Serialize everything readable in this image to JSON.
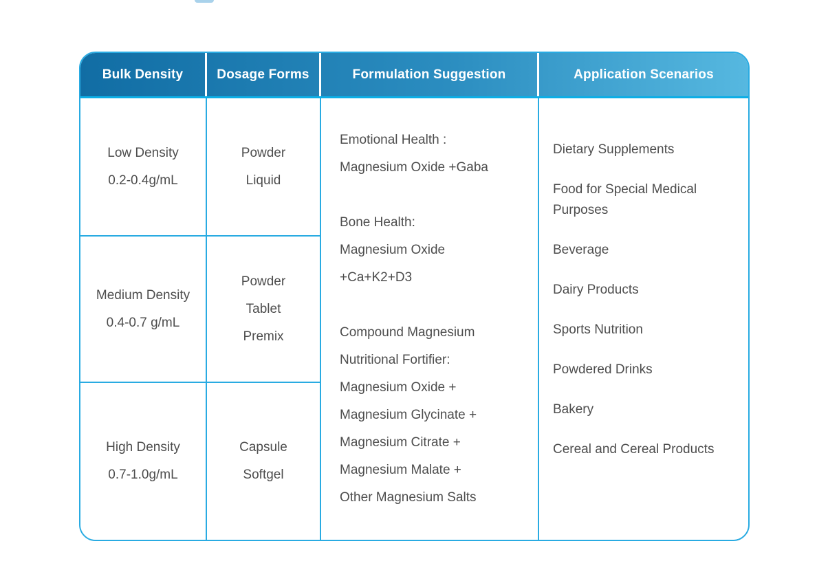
{
  "colors": {
    "header_gradient_left": "#116da4",
    "header_gradient_right": "#56b8e0",
    "header_text": "#ffffff",
    "grid_border": "#29abe2",
    "header_underline": "#0caee6",
    "cell_text": "#4d4d4d",
    "top_sliver": "#a9d2eb"
  },
  "table": {
    "headers": [
      "Bulk Density",
      "Dosage Forms",
      "Formulation Suggestion",
      "Application Scenarios"
    ],
    "density_rows": [
      {
        "density": "Low Density",
        "range": "0.2-0.4g/mL",
        "forms": [
          "Powder",
          "Liquid"
        ]
      },
      {
        "density": "Medium Density",
        "range": "0.4-0.7 g/mL",
        "forms": [
          "Powder",
          "Tablet",
          "Premix"
        ]
      },
      {
        "density": "High Density",
        "range": "0.7-1.0g/mL",
        "forms": [
          "Capsule",
          "Softgel"
        ]
      }
    ],
    "formulation_groups": [
      [
        "Emotional Health :",
        "Magnesium Oxide +Gaba"
      ],
      [
        "Bone Health:",
        "Magnesium Oxide",
        "+Ca+K2+D3"
      ],
      [
        "Compound Magnesium",
        "Nutritional Fortifier:",
        "Magnesium Oxide +",
        "Magnesium Glycinate +",
        "Magnesium Citrate +",
        "Magnesium Malate +",
        "Other Magnesium Salts"
      ]
    ],
    "application_scenarios": [
      "Dietary Supplements",
      "Food for Special Medical Purposes",
      "Beverage",
      "Dairy Products",
      "Sports Nutrition",
      "Powdered Drinks",
      "Bakery",
      "Cereal and Cereal Products"
    ]
  }
}
